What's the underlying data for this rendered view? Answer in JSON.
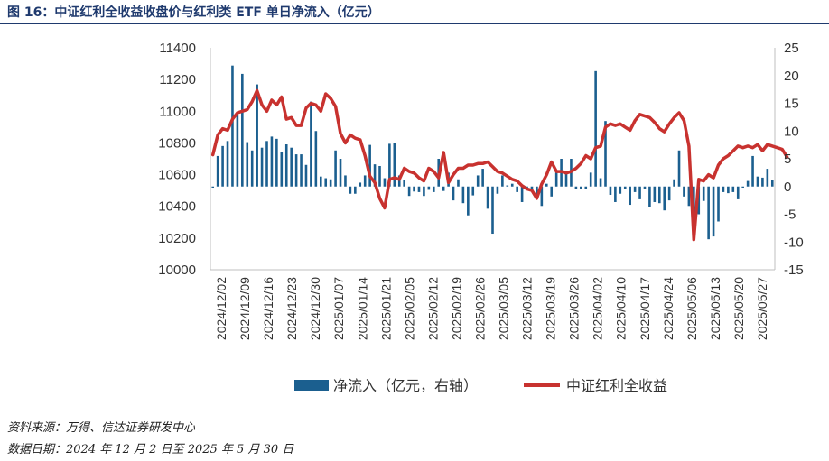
{
  "header": {
    "title": "图 16：中证红利全收益收盘价与红利类 ETF 单日净流入（亿元）"
  },
  "footer": {
    "source": "资料来源：万得、信达证券研发中心",
    "date_range": "数据日期：2024 年 12 月 2 日至 2025 年 5 月 30 日"
  },
  "colors": {
    "bar": "#1b5f8f",
    "line": "#c8322f",
    "title": "#1f3a6e"
  },
  "chart_data": {
    "type": "bar+line",
    "title": "",
    "left_axis": {
      "ylim": [
        10000,
        11400
      ],
      "ticks": [
        10000,
        10200,
        10400,
        10600,
        10800,
        11000,
        11200,
        11400
      ],
      "ylabel": ""
    },
    "right_axis": {
      "ylim": [
        -15,
        25
      ],
      "ticks": [
        -15,
        -10,
        -5,
        0,
        5,
        10,
        15,
        20,
        25
      ],
      "ylabel": ""
    },
    "x_tick_labels": [
      "2024/12/02",
      "2024/12/09",
      "2024/12/16",
      "2024/12/23",
      "2024/12/30",
      "2025/01/07",
      "2025/01/14",
      "2025/01/21",
      "2025/02/05",
      "2025/02/12",
      "2025/02/19",
      "2025/02/26",
      "2025/03/05",
      "2025/03/12",
      "2025/03/19",
      "2025/03/26",
      "2025/04/02",
      "2025/04/10",
      "2025/04/17",
      "2025/04/24",
      "2025/05/06",
      "2025/05/13",
      "2025/05/20",
      "2025/05/27"
    ],
    "legend_position": "bottom",
    "series": [
      {
        "name": "净流入（亿元，右轴）",
        "axis": "right",
        "type": "bar",
        "values": [
          -0.2,
          5.5,
          7.3,
          8.2,
          21.8,
          13.0,
          20.3,
          8.0,
          6.5,
          18.4,
          7.0,
          8.2,
          9.0,
          8.6,
          6.3,
          7.6,
          7.0,
          5.8,
          5.8,
          3.9,
          15.3,
          10.0,
          1.8,
          1.5,
          1.3,
          6.5,
          5.0,
          2.0,
          -1.3,
          -1.3,
          0.7,
          2.0,
          7.5,
          4.0,
          3.7,
          1.5,
          7.7,
          7.8,
          2.0,
          1.2,
          -1.7,
          -0.9,
          -1.0,
          -1.7,
          -0.6,
          -1.0,
          5.0,
          -0.8,
          2.5,
          -2.5,
          1.3,
          -3.0,
          -5.2,
          -1.6,
          2.0,
          3.2,
          -4.0,
          -8.5,
          -1.3,
          2.0,
          0.2,
          0.5,
          -1.0,
          -2.8,
          -0.5,
          -0.7,
          -2.0,
          -3.5,
          0.5,
          -1.8,
          2.5,
          5.0,
          2.3,
          5.0,
          -0.5,
          -0.5,
          -0.5,
          2.5,
          20.8,
          1.5,
          11.8,
          -1.5,
          -2.8,
          -1.3,
          -0.5,
          -3.3,
          -1.0,
          -2.3,
          -0.5,
          -3.7,
          -2.8,
          -3.0,
          -4.3,
          -2.5,
          1.3,
          6.5,
          -1.8,
          -3.5,
          -5.3,
          -5.0,
          -2.6,
          -9.5,
          -9.0,
          -6.3,
          -1.0,
          -1.2,
          -1.0,
          -2.3,
          -0.2,
          1.0,
          5.5,
          1.8,
          1.6,
          3.2,
          1.2
        ]
      },
      {
        "name": "中证红利全收益",
        "axis": "left",
        "type": "line",
        "values": [
          10725,
          10850,
          10890,
          10880,
          10950,
          10990,
          11000,
          11010,
          11060,
          11130,
          11040,
          11000,
          11070,
          11040,
          11090,
          10950,
          10960,
          10910,
          10910,
          11020,
          11050,
          11040,
          11000,
          11110,
          11080,
          11030,
          10860,
          10800,
          10850,
          10830,
          10820,
          10720,
          10590,
          10550,
          10450,
          10390,
          10570,
          10580,
          10570,
          10640,
          10620,
          10610,
          10580,
          10560,
          10640,
          10620,
          10580,
          10740,
          10550,
          10600,
          10640,
          10640,
          10660,
          10660,
          10670,
          10670,
          10680,
          10650,
          10620,
          10610,
          10590,
          10570,
          10560,
          10530,
          10510,
          10500,
          10450,
          10540,
          10600,
          10680,
          10620,
          10620,
          10610,
          10620,
          10640,
          10670,
          10720,
          10700,
          10770,
          10780,
          10900,
          10920,
          10910,
          10920,
          10900,
          10880,
          10940,
          10980,
          10970,
          10960,
          10930,
          10890,
          10870,
          10920,
          10960,
          10990,
          10940,
          10780,
          10190,
          10570,
          10560,
          10600,
          10580,
          10660,
          10700,
          10720,
          10750,
          10780,
          10770,
          10780,
          10770,
          10790,
          10750,
          10790,
          10780,
          10770,
          10760,
          10710
        ]
      }
    ]
  }
}
